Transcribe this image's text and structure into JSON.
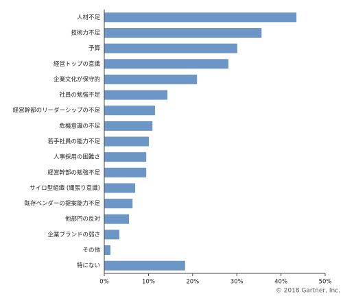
{
  "chart_data": {
    "type": "barh",
    "categories": [
      "人材不足",
      "技術力不足",
      "予算",
      "経営トップの意識",
      "企業文化が保守的",
      "社員の勉強不足",
      "経営幹部のリーダーシップの不足",
      "危機意識の不足",
      "若手社員の能力不足",
      "人事採用の困難さ",
      "経営幹部の勉強不足",
      "サイロ型組織 (縄張り意識)",
      "既存ベンダーの提案能力不足",
      "他部門の反対",
      "企業ブランドの弱さ",
      "その他",
      "特にない"
    ],
    "values": [
      43.5,
      35.6,
      30.1,
      28.1,
      21.0,
      14.3,
      11.5,
      10.9,
      10.1,
      9.5,
      9.5,
      7.0,
      6.4,
      5.6,
      3.4,
      1.4,
      18.3
    ],
    "color": "#6b96c6",
    "xlim": [
      0,
      50
    ],
    "xticks": [
      {
        "value": 0,
        "label": "0%"
      },
      {
        "value": 10,
        "label": "10%"
      },
      {
        "value": 20,
        "label": "20%"
      },
      {
        "value": 30,
        "label": "30%"
      },
      {
        "value": 40,
        "label": "40%"
      },
      {
        "value": 50,
        "label": "50%"
      }
    ],
    "note": "© 2018 Gartner, Inc."
  }
}
